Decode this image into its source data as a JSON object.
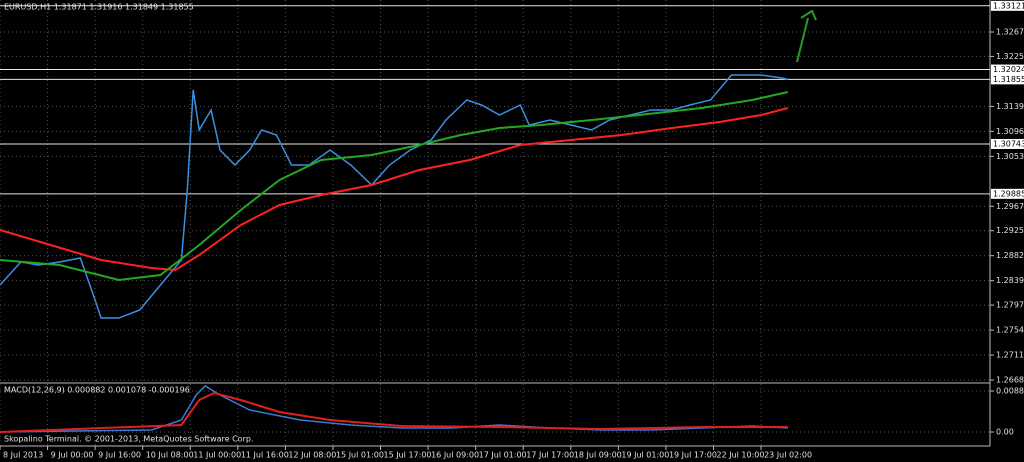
{
  "chart_data": [
    {
      "type": "line",
      "title": "EURUSD,H1  1.31871 1.31916 1.31849 1.31855",
      "xlim": [
        0,
        333
      ],
      "ylim": [
        1.26646,
        1.33221
      ],
      "yticks": [
        {
          "value": 1.3267,
          "label": "1.32670"
        },
        {
          "value": 1.3225,
          "label": "1.32250"
        },
        {
          "value": 1.3139,
          "label": "1.31390"
        },
        {
          "value": 1.3096,
          "label": "1.30960"
        },
        {
          "value": 1.3053,
          "label": "1.30530"
        },
        {
          "value": 1.2967,
          "label": "1.29670"
        },
        {
          "value": 1.2925,
          "label": "1.29250"
        },
        {
          "value": 1.2882,
          "label": "1.28820"
        },
        {
          "value": 1.2839,
          "label": "1.28390"
        },
        {
          "value": 1.2797,
          "label": "1.27970"
        },
        {
          "value": 1.2754,
          "label": "1.27540"
        },
        {
          "value": 1.2711,
          "label": "1.27110"
        },
        {
          "value": 1.2668,
          "label": "1.26680"
        }
      ],
      "levels": [
        1.33121,
        1.32024,
        1.31855,
        1.30743,
        1.29885
      ],
      "grid": true,
      "series": [
        {
          "color": "#3c8fe0",
          "x": [
            0,
            7,
            13,
            20,
            27,
            32,
            34,
            40,
            47,
            54,
            61,
            63,
            65,
            67,
            71,
            74,
            79,
            84,
            88,
            93,
            98,
            104,
            111,
            118,
            125,
            131,
            138,
            145,
            150,
            157,
            162,
            168,
            175,
            178,
            185,
            192,
            199,
            205,
            212,
            219,
            226,
            232,
            239,
            246,
            256,
            263,
            265
          ],
          "values": [
            1.28316,
            1.28712,
            1.2866,
            1.28712,
            1.2878,
            1.28057,
            1.27748,
            1.27748,
            1.27885,
            1.28316,
            1.28746,
            1.29951,
            1.31672,
            1.30983,
            1.31328,
            1.30639,
            1.30381,
            1.30639,
            1.30983,
            1.30897,
            1.30381,
            1.30381,
            1.30639,
            1.30381,
            1.30037,
            1.30381,
            1.30639,
            1.30811,
            1.31156,
            1.315,
            1.31414,
            1.31242,
            1.31414,
            1.3107,
            1.31156,
            1.3107,
            1.30983,
            1.31156,
            1.31242,
            1.31328,
            1.31328,
            1.31414,
            1.315,
            1.3193,
            1.3193,
            1.31878,
            1.31855
          ]
        },
        {
          "color": "#ff2020",
          "x": [
            0,
            17,
            34,
            51,
            59,
            67,
            81,
            94,
            108,
            125,
            141,
            158,
            175,
            192,
            209,
            226,
            242,
            256,
            265
          ],
          "values": [
            1.29262,
            1.29004,
            1.28746,
            1.28608,
            1.28574,
            1.28832,
            1.29348,
            1.29693,
            1.29865,
            1.30037,
            1.30295,
            1.30467,
            1.30725,
            1.30811,
            1.30897,
            1.31018,
            1.31121,
            1.31242,
            1.31362
          ]
        },
        {
          "color": "#22a822",
          "x": [
            0,
            20,
            40,
            54,
            67,
            81,
            94,
            108,
            125,
            141,
            155,
            168,
            182,
            199,
            215,
            236,
            253,
            265
          ],
          "values": [
            1.28746,
            1.2866,
            1.28402,
            1.28488,
            1.29004,
            1.29607,
            1.30123,
            1.30467,
            1.30553,
            1.30725,
            1.30897,
            1.31018,
            1.3107,
            1.31156,
            1.31242,
            1.31362,
            1.315,
            1.31638
          ]
        }
      ]
    },
    {
      "type": "line",
      "title": "MACD(12,26,9) 0.000882 0.001078 -0.000196",
      "footnote": "Skopalino Terminal. © 2001-2013, MetaQuotes Software Corp.",
      "xlim": [
        0,
        333
      ],
      "ylim": [
        -0.00302,
        0.01036
      ],
      "yticks": [
        0.008849,
        {
          "value": 0,
          "label": "0.00"
        }
      ],
      "xticks": [
        {
          "value": 0,
          "label": "8 Jul 2013"
        },
        {
          "value": 16,
          "label": "9 Jul 00:00"
        },
        {
          "value": 32,
          "label": "9 Jul 16:00"
        },
        {
          "value": 48,
          "label": "10 Jul 08:00"
        },
        {
          "value": 64,
          "label": "11 Jul 00:00"
        },
        {
          "value": 80,
          "label": "11 Jul 16:00"
        },
        {
          "value": 96,
          "label": "12 Jul 08:00"
        },
        {
          "value": 112,
          "label": "15 Jul 01:00"
        },
        {
          "value": 128,
          "label": "15 Jul 17:00"
        },
        {
          "value": 144,
          "label": "16 Jul 09:00"
        },
        {
          "value": 160,
          "label": "17 Jul 01:00"
        },
        {
          "value": 176,
          "label": "17 Jul 17:00"
        },
        {
          "value": 192,
          "label": "18 Jul 09:00"
        },
        {
          "value": 208,
          "label": "19 Jul 01:00"
        },
        {
          "value": 224,
          "label": "19 Jul 17:00"
        },
        {
          "value": 240,
          "label": "22 Jul 10:00"
        },
        {
          "value": 256,
          "label": "23 Jul 02:00"
        }
      ],
      "grid": true,
      "series": [
        {
          "color": "#3a7bd5",
          "x": [
            0,
            51,
            61,
            66,
            69,
            74,
            84,
            101,
            118,
            135,
            152,
            168,
            185,
            202,
            219,
            236,
            253,
            265
          ],
          "values": [
            0,
            0.00043,
            0.00259,
            0.00799,
            0.00993,
            0.00799,
            0.00475,
            0.00259,
            0.00151,
            0.00086,
            0.00086,
            0.00151,
            0.00086,
            0.00043,
            0.00043,
            0.00086,
            0.0013,
            0.00086
          ]
        },
        {
          "color": "#e02020",
          "x": [
            0,
            61,
            67,
            72,
            81,
            94,
            111,
            135,
            168,
            202,
            236,
            265
          ],
          "values": [
            0,
            0.00151,
            0.00691,
            0.00842,
            0.00691,
            0.00432,
            0.00259,
            0.0013,
            0.00108,
            0.00065,
            0.00108,
            0.00108
          ]
        }
      ]
    }
  ]
}
